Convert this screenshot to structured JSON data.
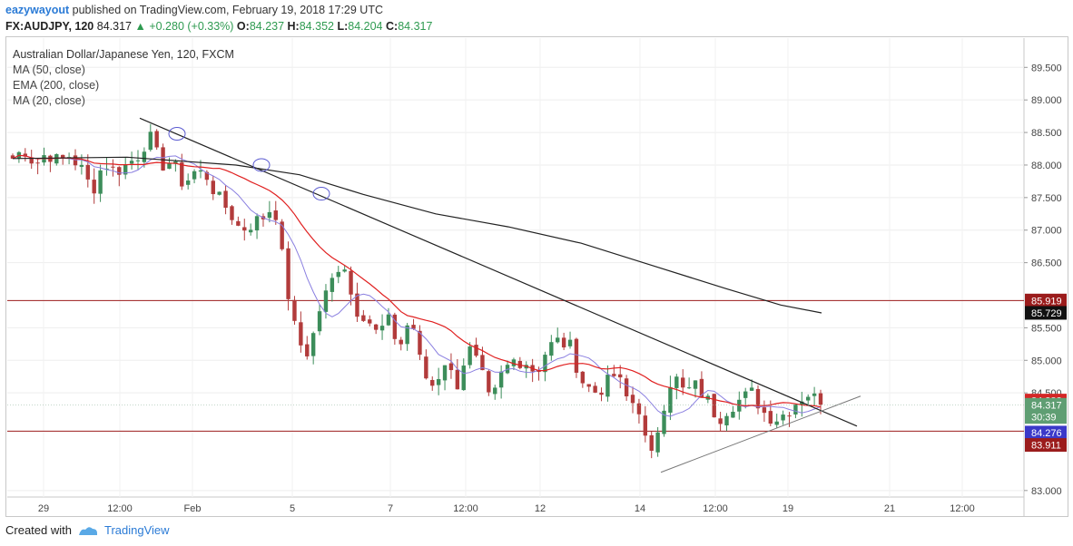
{
  "header": {
    "user": "eazywayout",
    "published_text": "published on TradingView.com, February 19, 2018 17:29 UTC"
  },
  "ohlc": {
    "symbol": "FX:AUDJPY, 120",
    "last": "84.317",
    "change": "▲ +0.280 (+0.33%)",
    "o_label": "O:",
    "o": "84.237",
    "h_label": "H:",
    "h": "84.352",
    "l_label": "L:",
    "l": "84.204",
    "c_label": "C:",
    "c": "84.317"
  },
  "legend": {
    "title": "Australian Dollar/Japanese Yen, 120, FXCM",
    "items": [
      "MA (50, close)",
      "EMA (200, close)",
      "MA (20, close)"
    ]
  },
  "footer": {
    "created_with": "Created with",
    "brand": "TradingView"
  },
  "colors": {
    "up": "#3c8d5a",
    "down": "#b23b3b",
    "ma50": "#e02020",
    "ema200": "#222222",
    "ma20": "#8a7fe0",
    "hline": "#9b1c1c",
    "trendline": "#222222",
    "support": "#777777",
    "circle": "#5a5ad0"
  },
  "chart_data": {
    "type": "candlestick",
    "title": "Australian Dollar/Japanese Yen, 120, FXCM",
    "y_axis": {
      "range": [
        82.9,
        89.95
      ],
      "ticks": [
        "89.500",
        "89.000",
        "88.500",
        "88.000",
        "87.500",
        "87.000",
        "86.500",
        "85.500",
        "85.000",
        "84.500",
        "83.000"
      ]
    },
    "x_axis": {
      "ticks": [
        "29",
        "12:00",
        "Feb",
        "5",
        "7",
        "12:00",
        "12",
        "14",
        "12:00",
        "19",
        "21",
        "12:00"
      ]
    },
    "price_labels": [
      {
        "value": "85.919",
        "kind": "hline"
      },
      {
        "value": "85.729",
        "kind": "ema200"
      },
      {
        "value": "84.382",
        "kind": "ma50"
      },
      {
        "value": "84.317",
        "kind": "last"
      },
      {
        "value": "30:39",
        "kind": "countdown"
      },
      {
        "value": "84.276",
        "kind": "ma20"
      },
      {
        "value": "83.911",
        "kind": "hline"
      }
    ],
    "horizontal_lines": [
      85.919,
      83.911
    ],
    "close_path": [
      [
        "Jan 29",
        88.1
      ],
      [
        "",
        88.25
      ],
      [
        "",
        88.0
      ],
      [
        "",
        88.2
      ],
      [
        "",
        88.05
      ],
      [
        "",
        88.15
      ],
      [
        "",
        87.95
      ],
      [
        "",
        87.6
      ],
      [
        "",
        88.05
      ],
      [
        "",
        87.9
      ],
      [
        "",
        88.0
      ],
      [
        "",
        88.15
      ],
      [
        "Feb 1",
        88.45
      ],
      [
        "",
        88.0
      ],
      [
        "",
        88.05
      ],
      [
        "",
        87.7
      ],
      [
        "",
        87.9
      ],
      [
        "",
        87.85
      ],
      [
        "",
        87.5
      ],
      [
        "Feb 5",
        87.3
      ],
      [
        "",
        87.0
      ],
      [
        "",
        87.1
      ],
      [
        "",
        87.2
      ],
      [
        "",
        87.4
      ],
      [
        "",
        86.2
      ],
      [
        "",
        85.3
      ],
      [
        "",
        85.1
      ],
      [
        "",
        85.8
      ],
      [
        "",
        86.2
      ],
      [
        "Feb 7",
        86.6
      ],
      [
        "",
        85.8
      ],
      [
        "",
        85.7
      ],
      [
        "",
        85.4
      ],
      [
        "",
        85.6
      ],
      [
        "",
        85.2
      ],
      [
        "",
        85.7
      ],
      [
        "",
        84.8
      ],
      [
        "",
        84.6
      ],
      [
        "",
        85.0
      ],
      [
        "",
        84.6
      ],
      [
        "",
        85.2
      ],
      [
        "",
        84.9
      ],
      [
        "",
        84.3
      ],
      [
        "",
        84.8
      ],
      [
        "Feb 12",
        85.0
      ],
      [
        "",
        85.0
      ],
      [
        "",
        84.8
      ],
      [
        "",
        85.2
      ],
      [
        "",
        85.3
      ],
      [
        "",
        85.2
      ],
      [
        "",
        84.7
      ],
      [
        "",
        84.5
      ],
      [
        "",
        84.6
      ],
      [
        "",
        84.8
      ],
      [
        "",
        84.4
      ],
      [
        "Feb 14",
        84.3
      ],
      [
        "",
        83.4
      ],
      [
        "",
        84.2
      ],
      [
        "",
        84.8
      ],
      [
        "",
        84.5
      ],
      [
        "",
        84.6
      ],
      [
        "",
        84.4
      ],
      [
        "",
        84.1
      ],
      [
        "",
        84.3
      ],
      [
        "",
        84.4
      ],
      [
        "",
        84.5
      ],
      [
        "",
        84.2
      ],
      [
        "",
        84.1
      ],
      [
        "",
        84.2
      ],
      [
        "Feb 19",
        84.4
      ],
      [
        "",
        84.5
      ],
      [
        "",
        84.317
      ]
    ],
    "series": [
      {
        "name": "MA (50, close)"
      },
      {
        "name": "EMA (200, close)"
      },
      {
        "name": "MA (20, close)"
      }
    ],
    "annotations": [
      "descending trendline",
      "ascending support line",
      "3 circled swing highs"
    ]
  }
}
